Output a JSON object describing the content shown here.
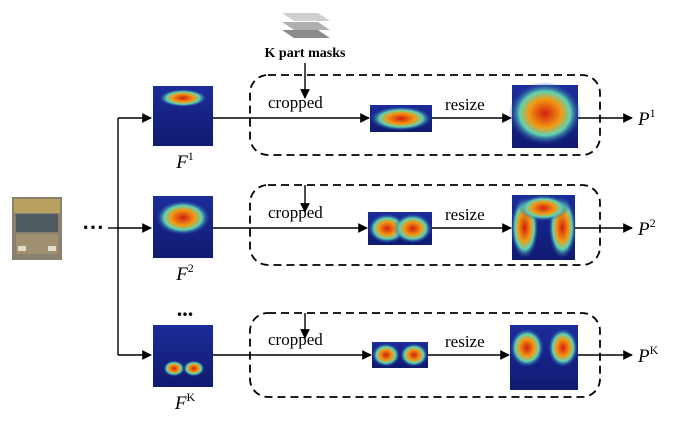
{
  "mask_stack": {
    "label": "K part masks"
  },
  "input": {
    "ellipsis": "⋯"
  },
  "row_ellipsis": "...",
  "rows": [
    {
      "feature": {
        "base": "F",
        "sup": "1"
      },
      "crop_label": "cropped",
      "resize_label": "resize",
      "output": {
        "base": "P",
        "sup": "1"
      }
    },
    {
      "feature": {
        "base": "F",
        "sup": "2"
      },
      "crop_label": "cropped",
      "resize_label": "resize",
      "output": {
        "base": "P",
        "sup": "2"
      }
    },
    {
      "feature": {
        "base": "F",
        "sup": "K"
      },
      "crop_label": "cropped",
      "resize_label": "resize",
      "output": {
        "base": "P",
        "sup": "K"
      }
    }
  ]
}
